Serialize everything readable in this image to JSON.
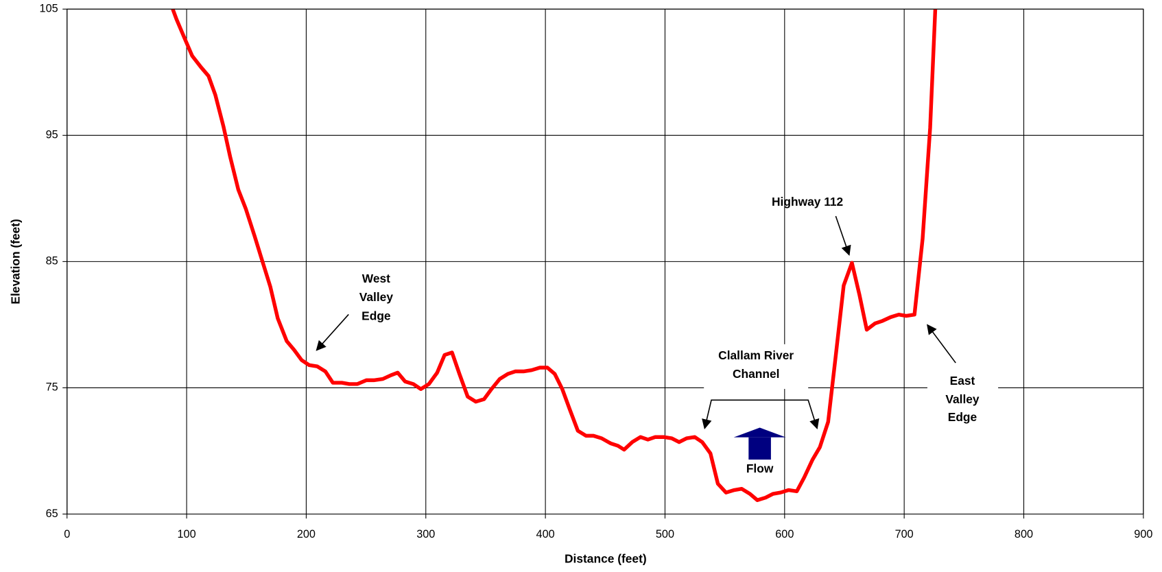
{
  "chart_data": {
    "type": "line",
    "x_label": "Distance (feet)",
    "y_label": "Elevation (feet)",
    "xlim": [
      0,
      900
    ],
    "xticks": [
      0,
      100,
      200,
      300,
      400,
      500,
      600,
      700,
      800,
      900
    ],
    "ylim": [
      65,
      105
    ],
    "yticks": [
      65,
      75,
      85,
      95,
      105
    ],
    "grid": true,
    "x": [
      88.4,
      91.5,
      97.8,
      104.6,
      112,
      118.3,
      124,
      130.8,
      136.4,
      143.2,
      149.4,
      156.9,
      163.1,
      170,
      176.2,
      183.7,
      189.9,
      196.1,
      202.4,
      209.2,
      216,
      222.3,
      229.8,
      236,
      242.8,
      250.3,
      256.5,
      264,
      270.9,
      276.5,
      282.7,
      289.5,
      295.8,
      302.6,
      309.5,
      315.7,
      321.9,
      328.1,
      335,
      341.8,
      348.7,
      354.9,
      361.8,
      368.6,
      374.8,
      381.7,
      388.5,
      395.4,
      401.6,
      407.8,
      414.1,
      420.3,
      427.1,
      434,
      440.2,
      447,
      454.5,
      460.8,
      465.8,
      472.6,
      479.5,
      485.7,
      491.9,
      498.8,
      505.6,
      511.8,
      518.1,
      524.9,
      531.1,
      538,
      544.2,
      551,
      557.9,
      564.1,
      571,
      577.2,
      584.1,
      590.3,
      596.5,
      603.4,
      610.2,
      616.4,
      623.3,
      629.5,
      636.4,
      642.6,
      649.4,
      656.3,
      662.5,
      668.7,
      675.6,
      681.8,
      688.7,
      695.5,
      701.7,
      708.6,
      715.4,
      721.7,
      726
    ],
    "series": [
      {
        "color": "#ff0000",
        "values": [
          105,
          104.2,
          102.8,
          101.3,
          100.4,
          99.7,
          98.2,
          95.7,
          93.3,
          90.7,
          89.2,
          87,
          85.1,
          83,
          80.5,
          78.7,
          78,
          77.2,
          76.8,
          76.7,
          76.3,
          75.4,
          75.4,
          75.3,
          75.3,
          75.6,
          75.6,
          75.7,
          76,
          76.2,
          75.5,
          75.3,
          74.9,
          75.3,
          76.2,
          77.6,
          77.8,
          76.1,
          74.3,
          73.9,
          74.1,
          74.9,
          75.7,
          76.1,
          76.3,
          76.3,
          76.4,
          76.6,
          76.6,
          76.1,
          74.9,
          73.3,
          71.6,
          71.2,
          71.2,
          71,
          70.6,
          70.4,
          70.1,
          70.7,
          71.1,
          70.9,
          71.1,
          71.1,
          71,
          70.7,
          71,
          71.1,
          70.7,
          69.8,
          67.4,
          66.7,
          66.9,
          67,
          66.6,
          66.1,
          66.3,
          66.6,
          66.7,
          66.9,
          66.8,
          67.9,
          69.3,
          70.3,
          72.3,
          77.4,
          83.1,
          84.9,
          82.4,
          79.6,
          80.1,
          80.3,
          80.6,
          80.8,
          80.7,
          80.8,
          86.8,
          95.6,
          105
        ]
      }
    ],
    "annotations": [
      [
        "West",
        "Valley",
        "Edge"
      ],
      [
        "Highway 112"
      ],
      [
        "Clallam River",
        "Channel"
      ],
      [
        "Flow"
      ],
      [
        "East",
        "Valley",
        "Edge"
      ]
    ]
  }
}
